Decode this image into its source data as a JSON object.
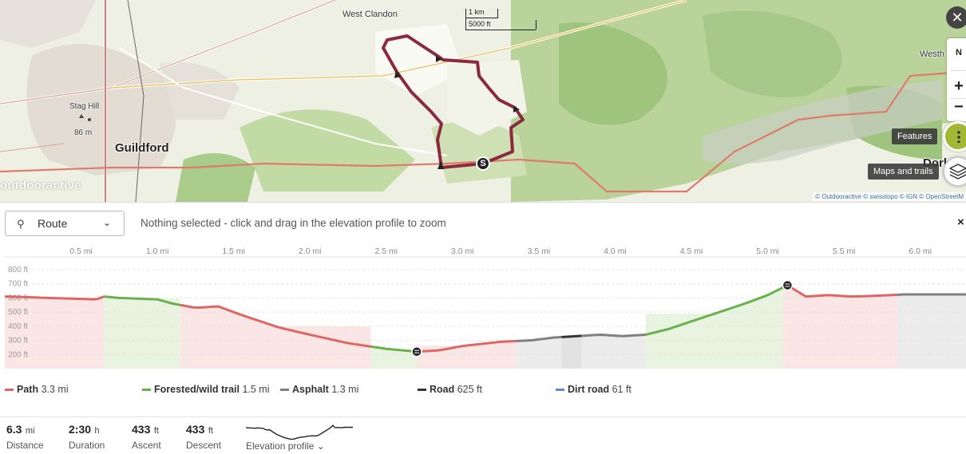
{
  "map": {
    "places": {
      "west_clandon": "West Clandon",
      "guildford": "Guildford",
      "stag_hill": "Stag Hill",
      "stag_hill_elev": "86 m",
      "westh": "Westh",
      "dork": "Dork"
    },
    "scale": {
      "metric": "1 km",
      "imperial": "5000 ft"
    },
    "brand": "outdooractive",
    "attribution": "© Outdooractive © swisstopo © IGN © OpenStreetM",
    "controls": {
      "close": "✕",
      "north": "N",
      "zoom_in": "+",
      "zoom_out": "−"
    },
    "tooltips": {
      "features": "Features",
      "maps_and_trails": "Maps and trails"
    },
    "start_marker": "S",
    "colors": {
      "route": "#8a2a3e",
      "trail_red": "#e06a6a",
      "forest": "#a6c98a"
    }
  },
  "profile": {
    "route_label": "Route",
    "hint": "Nothing selected - click and drag in the elevation profile to zoom",
    "close": "×",
    "x_ticks": [
      "0.5 mi",
      "1.0 mi",
      "1.5 mi",
      "2.0 mi",
      "2.5 mi",
      "3.0 mi",
      "3.5 mi",
      "4.0 mi",
      "4.5 mi",
      "5.0 mi",
      "5.5 mi",
      "6.0 mi"
    ],
    "y_ticks": [
      "800 ft",
      "700 ft",
      "600 ft",
      "500 ft",
      "400 ft",
      "300 ft",
      "200 ft"
    ]
  },
  "chart_data": {
    "type": "area",
    "xlabel": "",
    "ylabel": "",
    "xlim": [
      0,
      6.3
    ],
    "ylim": [
      100,
      800
    ],
    "x": [
      0,
      0.3,
      0.6,
      0.65,
      0.75,
      1.0,
      1.1,
      1.25,
      1.4,
      1.55,
      1.8,
      2.0,
      2.25,
      2.5,
      2.7,
      2.85,
      3.0,
      3.25,
      3.45,
      3.6,
      3.75,
      3.9,
      4.05,
      4.2,
      4.35,
      4.6,
      4.85,
      5.0,
      5.13,
      5.25,
      5.4,
      5.55,
      5.7,
      5.9,
      6.1,
      6.3
    ],
    "values": [
      610,
      600,
      590,
      610,
      600,
      590,
      560,
      530,
      540,
      480,
      390,
      340,
      280,
      240,
      220,
      230,
      260,
      290,
      300,
      320,
      330,
      340,
      330,
      340,
      380,
      470,
      560,
      620,
      690,
      610,
      620,
      610,
      615,
      625,
      625,
      625
    ],
    "surface_segments": [
      {
        "type": "Path",
        "from": 0,
        "to": 0.65
      },
      {
        "type": "Forested/wild trail",
        "from": 0.65,
        "to": 1.15
      },
      {
        "type": "Path",
        "from": 1.15,
        "to": 2.4
      },
      {
        "type": "Forested/wild trail",
        "from": 2.4,
        "to": 2.7
      },
      {
        "type": "Path",
        "from": 2.7,
        "to": 3.35
      },
      {
        "type": "Asphalt",
        "from": 3.35,
        "to": 3.65
      },
      {
        "type": "Road",
        "from": 3.65,
        "to": 3.78
      },
      {
        "type": "Asphalt",
        "from": 3.78,
        "to": 4.2
      },
      {
        "type": "Forested/wild trail",
        "from": 4.2,
        "to": 5.1
      },
      {
        "type": "Path",
        "from": 5.1,
        "to": 5.85
      },
      {
        "type": "Asphalt",
        "from": 5.85,
        "to": 6.3
      }
    ],
    "markers": [
      {
        "x": 2.7,
        "label": "min"
      },
      {
        "x": 5.13,
        "label": "max"
      }
    ]
  },
  "legend": [
    {
      "label": "Path",
      "value": "3.3 mi",
      "color": "#e06565"
    },
    {
      "label": "Forested/wild trail",
      "value": "1.5 mi",
      "color": "#6ab04c"
    },
    {
      "label": "Asphalt",
      "value": "1.3 mi",
      "color": "#808080"
    },
    {
      "label": "Road",
      "value": "625 ft",
      "color": "#333333"
    },
    {
      "label": "Dirt road",
      "value": "61 ft",
      "color": "#5b8ec4"
    }
  ],
  "stats": {
    "distance": {
      "value": "6.3",
      "unit": "mi",
      "label": "Distance"
    },
    "duration": {
      "value": "2:30",
      "unit": "h",
      "label": "Duration"
    },
    "ascent": {
      "value": "433",
      "unit": "ft",
      "label": "Ascent"
    },
    "descent": {
      "value": "433",
      "unit": "ft",
      "label": "Descent"
    },
    "elevation_profile_label": "Elevation profile"
  }
}
